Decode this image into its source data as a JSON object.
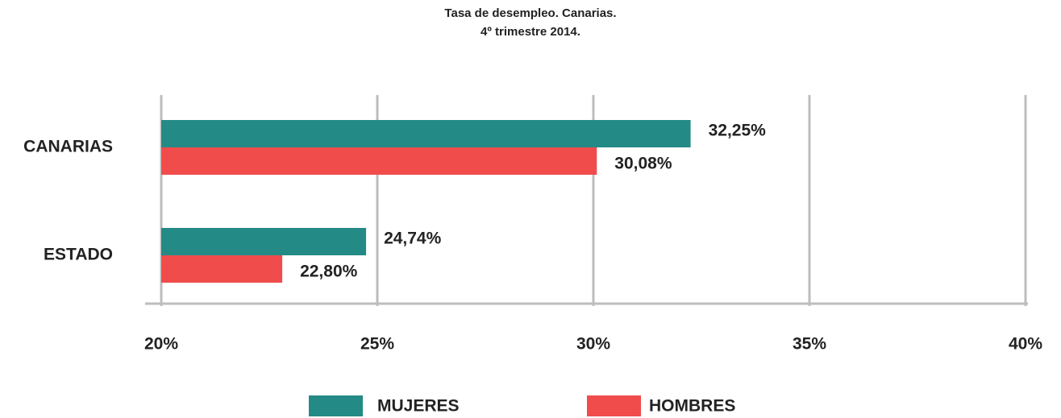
{
  "chart_data": {
    "type": "hbar",
    "title": "Tasa de desempleo. Canarias.",
    "subtitle": "4º trimestre 2014.",
    "categories": [
      "CANARIAS",
      "ESTADO"
    ],
    "series": [
      {
        "name": "MUJERES",
        "color": "#248a85",
        "values": [
          32.25,
          24.74
        ],
        "value_labels": [
          "32,25%",
          "24,74%"
        ]
      },
      {
        "name": "HOMBRES",
        "color": "#f04c4c",
        "values": [
          30.08,
          22.8
        ],
        "value_labels": [
          "30,08%",
          "22,80%"
        ]
      }
    ],
    "xlim": [
      20,
      40
    ],
    "xticks": [
      {
        "value": 20,
        "label": "20%"
      },
      {
        "value": 25,
        "label": "25%"
      },
      {
        "value": 30,
        "label": "30%"
      },
      {
        "value": 35,
        "label": "35%"
      },
      {
        "value": 40,
        "label": "40%"
      }
    ],
    "grid": true,
    "legend": "bottom"
  }
}
